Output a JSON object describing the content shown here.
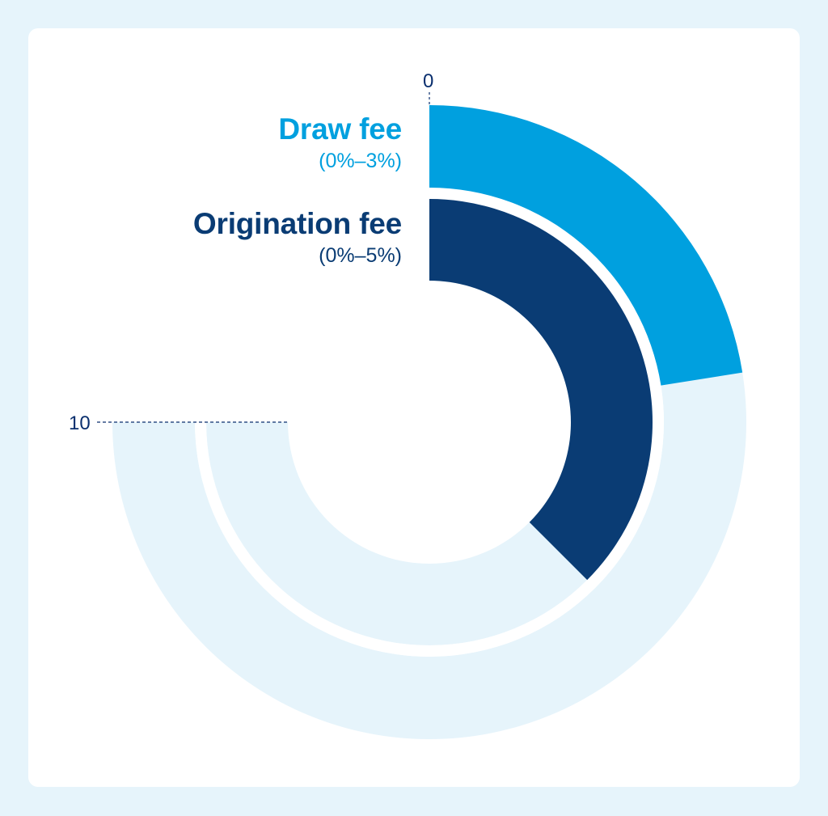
{
  "chart_data": {
    "type": "radial-bar",
    "scale": {
      "min": 0,
      "max": 10,
      "sweep_degrees": 270,
      "start": "top",
      "direction": "clockwise"
    },
    "tick_labels": [
      "0",
      "10"
    ],
    "series": [
      {
        "name": "Draw fee",
        "range_label": "(0%–3%)",
        "value": 3,
        "ring": "outer",
        "color": "#00a0df"
      },
      {
        "name": "Origination fee",
        "range_label": "(0%–5%)",
        "value": 5,
        "ring": "inner",
        "color": "#0a3c74"
      }
    ],
    "track_color": "#e6f4fb",
    "tick_color": "#0a2f6e"
  }
}
